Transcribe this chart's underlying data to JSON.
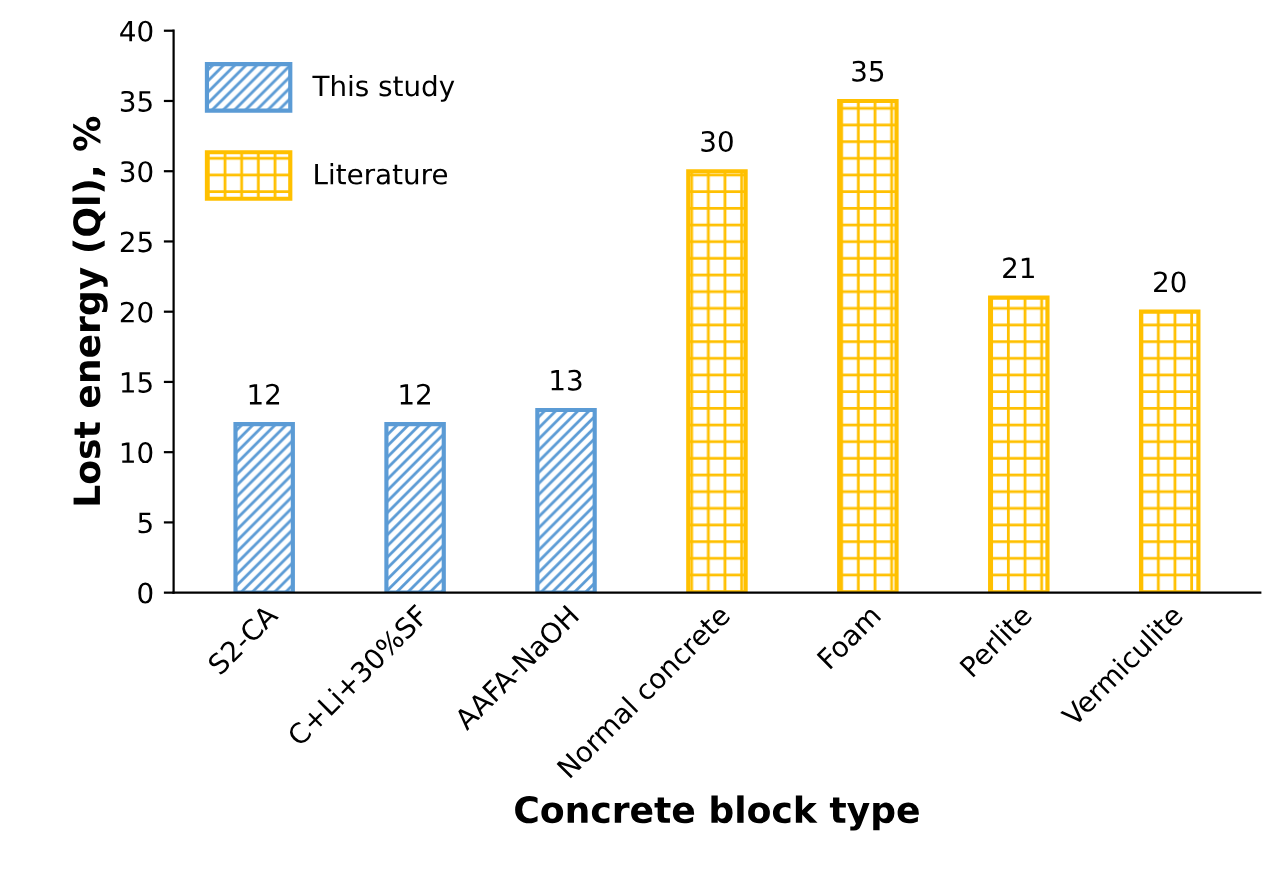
{
  "chart_data": {
    "type": "bar",
    "xlabel": "Concrete block type",
    "ylabel": "Lost energy (Ql), %",
    "categories": [
      "S2-CA",
      "C+Li+30%SF",
      "AAFA-NaOH",
      "Normal concrete",
      "Foam",
      "Perlite",
      "Vermiculite"
    ],
    "series": [
      {
        "name": "This study",
        "color": "#5b9bd5",
        "values": [
          12,
          12,
          13,
          null,
          null,
          null,
          null
        ]
      },
      {
        "name": "Literature",
        "color": "#ffc000",
        "values": [
          null,
          null,
          null,
          30,
          35,
          21,
          20
        ]
      }
    ],
    "ylim": [
      0,
      40
    ],
    "yticks": [
      0,
      5,
      10,
      15,
      20,
      25,
      30,
      35,
      40
    ],
    "data_labels": true,
    "grid": false,
    "legend": "top left"
  }
}
